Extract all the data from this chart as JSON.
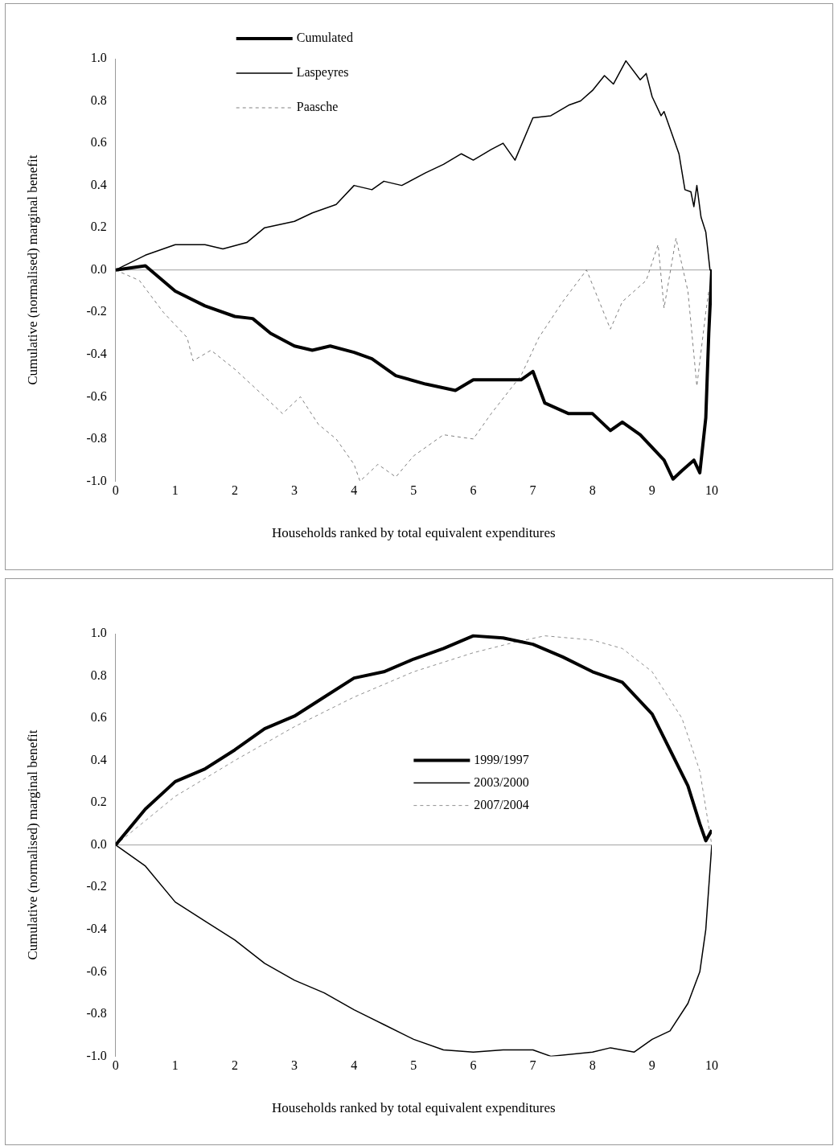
{
  "chart_data": [
    {
      "type": "line",
      "xlabel": "Households ranked by total equivalent expenditures",
      "ylabel": "Cumulative (normalised) marginal benefit",
      "xlim": [
        0,
        10
      ],
      "xticks": [
        0,
        1,
        2,
        3,
        4,
        5,
        6,
        7,
        8,
        9,
        10
      ],
      "ylim": [
        -1,
        1
      ],
      "yticks": [
        {
          "value": -1,
          "label": "-1.0"
        },
        {
          "value": -0.8,
          "label": "-0.8"
        },
        {
          "value": -0.6,
          "label": "-0.6"
        },
        {
          "value": -0.4,
          "label": "-0.4"
        },
        {
          "value": -0.2,
          "label": "-0.2"
        },
        {
          "value": 0,
          "label": "0.0"
        },
        {
          "value": 0.2,
          "label": "0.2"
        },
        {
          "value": 0.4,
          "label": "0.4"
        },
        {
          "value": 0.6,
          "label": "0.6"
        },
        {
          "value": 0.8,
          "label": "0.8"
        },
        {
          "value": 1,
          "label": "1.0"
        }
      ],
      "grid": false,
      "legend": "top left",
      "marker": "none",
      "ref_lines": [
        {
          "axis": "y",
          "value": 0,
          "color": "#a0a0a0"
        }
      ],
      "series": [
        {
          "name": "Cumulated",
          "color": "#000000",
          "line_style": "solid",
          "x": [
            0,
            0.5,
            1,
            1.5,
            2,
            2.3,
            2.6,
            3,
            3.3,
            3.6,
            4,
            4.3,
            4.7,
            5.2,
            5.7,
            6,
            6.5,
            6.8,
            7,
            7.2,
            7.6,
            8,
            8.3,
            8.5,
            8.8,
            9.2,
            9.35,
            9.5,
            9.7,
            9.8,
            9.9,
            9.95,
            10
          ],
          "values": [
            0,
            0.02,
            -0.1,
            -0.17,
            -0.22,
            -0.23,
            -0.3,
            -0.36,
            -0.38,
            -0.36,
            -0.39,
            -0.42,
            -0.5,
            -0.54,
            -0.57,
            -0.52,
            -0.52,
            -0.52,
            -0.48,
            -0.63,
            -0.68,
            -0.68,
            -0.76,
            -0.72,
            -0.78,
            -0.9,
            -0.99,
            -0.95,
            -0.9,
            -0.96,
            -0.7,
            -0.3,
            0
          ]
        },
        {
          "name": "Laspeyres",
          "color": "#000000",
          "line_style": "solid",
          "x": [
            0,
            0.5,
            1,
            1.5,
            1.8,
            2.2,
            2.5,
            3,
            3.3,
            3.7,
            4,
            4.3,
            4.5,
            4.8,
            5.2,
            5.5,
            5.8,
            6,
            6.3,
            6.5,
            6.7,
            7,
            7.3,
            7.6,
            7.8,
            8,
            8.2,
            8.35,
            8.56,
            8.8,
            8.9,
            9,
            9.15,
            9.2,
            9.45,
            9.55,
            9.65,
            9.7,
            9.75,
            9.82,
            9.9,
            9.97,
            10
          ],
          "values": [
            0,
            0.07,
            0.12,
            0.12,
            0.1,
            0.13,
            0.2,
            0.23,
            0.27,
            0.31,
            0.4,
            0.38,
            0.42,
            0.4,
            0.46,
            0.5,
            0.55,
            0.52,
            0.57,
            0.6,
            0.52,
            0.72,
            0.73,
            0.78,
            0.8,
            0.85,
            0.92,
            0.88,
            0.99,
            0.9,
            0.93,
            0.82,
            0.73,
            0.75,
            0.55,
            0.38,
            0.37,
            0.3,
            0.4,
            0.25,
            0.18,
            0,
            0
          ]
        },
        {
          "name": "Paasche",
          "color": "#808080",
          "line_style": "dashed",
          "x": [
            0,
            0.4,
            0.8,
            1.2,
            1.3,
            1.6,
            2,
            2.5,
            2.8,
            3.1,
            3.4,
            3.7,
            4,
            4.1,
            4.4,
            4.7,
            5,
            5.5,
            6,
            6.3,
            6.8,
            7.1,
            7.5,
            7.9,
            8.3,
            8.5,
            8.9,
            9.1,
            9.2,
            9.4,
            9.6,
            9.75,
            9.9,
            9.95
          ],
          "values": [
            0,
            -0.05,
            -0.2,
            -0.32,
            -0.43,
            -0.38,
            -0.47,
            -0.6,
            -0.68,
            -0.6,
            -0.73,
            -0.8,
            -0.92,
            -1,
            -0.92,
            -0.98,
            -0.88,
            -0.78,
            -0.8,
            -0.68,
            -0.5,
            -0.32,
            -0.15,
            0,
            -0.28,
            -0.15,
            -0.05,
            0.12,
            -0.18,
            0.15,
            -0.1,
            -0.55,
            -0.2,
            -0.1
          ]
        }
      ]
    },
    {
      "type": "line",
      "xlabel": "Households ranked by total equivalent expenditures",
      "ylabel": "Cumulative (normalised) marginal benefit",
      "xlim": [
        0,
        10
      ],
      "xticks": [
        0,
        1,
        2,
        3,
        4,
        5,
        6,
        7,
        8,
        9,
        10
      ],
      "ylim": [
        -1,
        1
      ],
      "yticks": [
        {
          "value": -1,
          "label": "-1.0"
        },
        {
          "value": -0.8,
          "label": "-0.8"
        },
        {
          "value": -0.6,
          "label": "-0.6"
        },
        {
          "value": -0.4,
          "label": "-0.4"
        },
        {
          "value": -0.2,
          "label": "-0.2"
        },
        {
          "value": 0,
          "label": "0.0"
        },
        {
          "value": 0.2,
          "label": "0.2"
        },
        {
          "value": 0.4,
          "label": "0.4"
        },
        {
          "value": 0.6,
          "label": "0.6"
        },
        {
          "value": 0.8,
          "label": "0.8"
        },
        {
          "value": 1,
          "label": "1.0"
        }
      ],
      "grid": false,
      "legend": "right",
      "marker": "none",
      "ref_lines": [
        {
          "axis": "y",
          "value": 0,
          "color": "#a0a0a0"
        }
      ],
      "series": [
        {
          "name": "1999/1997",
          "color": "#000000",
          "line_style": "solid",
          "x": [
            0,
            0.5,
            1,
            1.5,
            2,
            2.5,
            3,
            3.5,
            4,
            4.5,
            5,
            5.5,
            6,
            6.5,
            7,
            7.5,
            8,
            8.5,
            9,
            9.3,
            9.6,
            9.8,
            9.9,
            10
          ],
          "values": [
            0,
            0.17,
            0.3,
            0.36,
            0.45,
            0.55,
            0.61,
            0.7,
            0.79,
            0.82,
            0.88,
            0.93,
            0.99,
            0.98,
            0.95,
            0.89,
            0.82,
            0.77,
            0.62,
            0.45,
            0.28,
            0.1,
            0.02,
            0.07
          ]
        },
        {
          "name": "2003/2000",
          "color": "#000000",
          "line_style": "solid",
          "x": [
            0,
            0.5,
            1,
            1.5,
            2,
            2.5,
            3,
            3.5,
            4,
            4.5,
            5,
            5.5,
            6,
            6.5,
            7,
            7.3,
            8,
            8.3,
            8.7,
            9,
            9.3,
            9.6,
            9.8,
            9.9,
            10
          ],
          "values": [
            0,
            -0.1,
            -0.27,
            -0.36,
            -0.45,
            -0.56,
            -0.64,
            -0.7,
            -0.78,
            -0.85,
            -0.92,
            -0.97,
            -0.98,
            -0.97,
            -0.97,
            -1,
            -0.98,
            -0.96,
            -0.98,
            -0.92,
            -0.88,
            -0.75,
            -0.6,
            -0.4,
            0
          ]
        },
        {
          "name": "2007/2004",
          "color": "#909090",
          "line_style": "dashed",
          "x": [
            0,
            1,
            2,
            3,
            4,
            5,
            6,
            6.7,
            7.2,
            8,
            8.5,
            9,
            9.5,
            9.8,
            10
          ],
          "values": [
            0,
            0.23,
            0.4,
            0.56,
            0.7,
            0.82,
            0.91,
            0.96,
            0.99,
            0.97,
            0.93,
            0.82,
            0.6,
            0.35,
            0
          ]
        }
      ]
    }
  ]
}
